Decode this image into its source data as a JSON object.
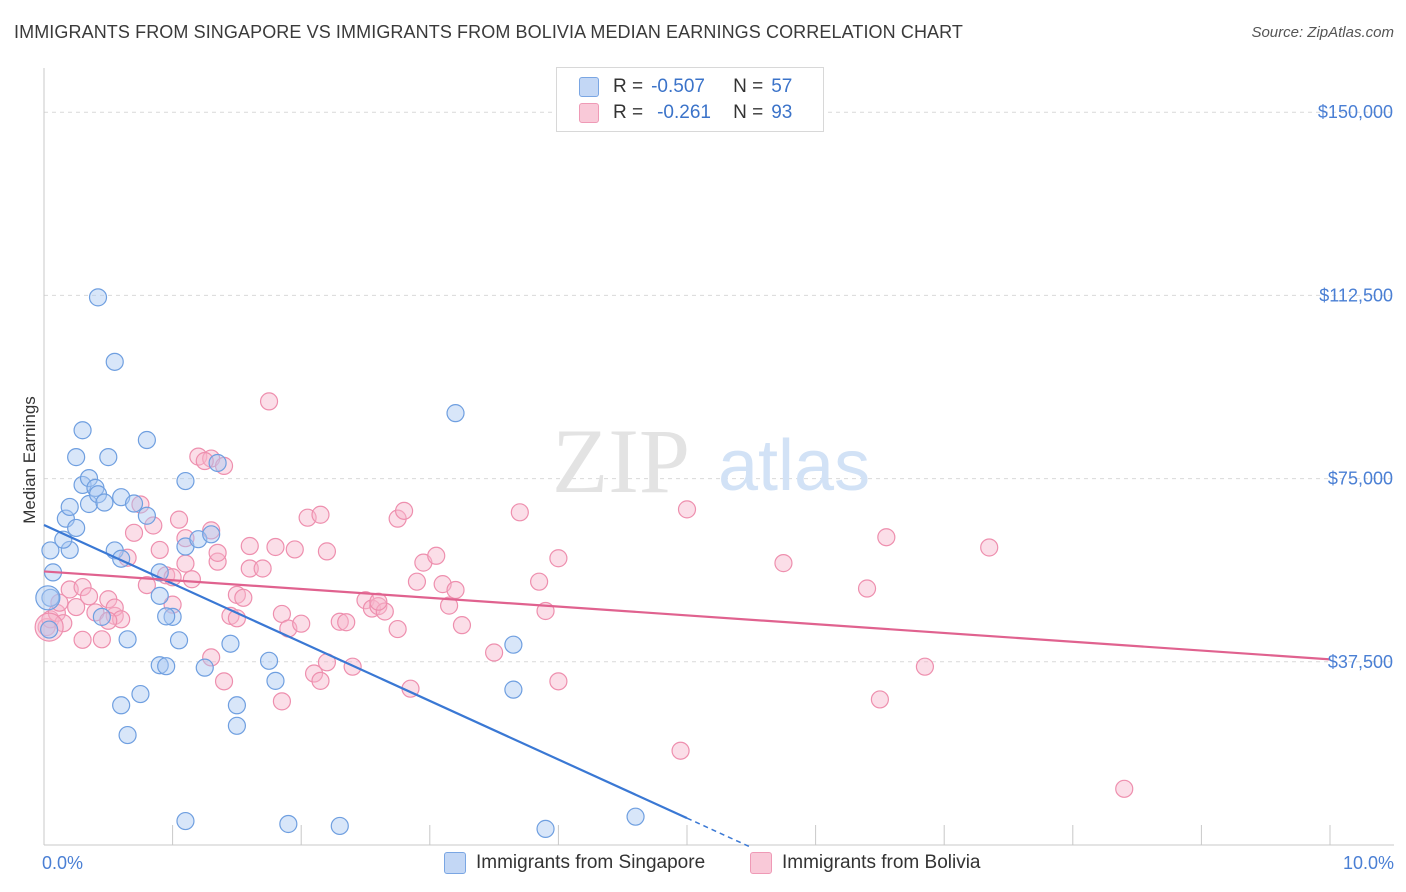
{
  "title": "IMMIGRANTS FROM SINGAPORE VS IMMIGRANTS FROM BOLIVIA MEDIAN EARNINGS CORRELATION CHART",
  "source": "Source: ZipAtlas.com",
  "watermark": {
    "zip": "ZIP",
    "atlas": "atlas"
  },
  "legend": {
    "rows": [
      {
        "r_label": "R =",
        "r_value": "-0.507",
        "n_label": "N =",
        "n_value": "57"
      },
      {
        "r_label": "R =",
        "r_value": "-0.261",
        "n_label": "N =",
        "n_value": "93"
      }
    ]
  },
  "colors": {
    "singapore_fill": "#a9c8f2",
    "singapore_stroke": "#6f9fe0",
    "singapore_line": "#3a78d4",
    "bolivia_fill": "#f6b6cb",
    "bolivia_stroke": "#ee8fae",
    "bolivia_line": "#e0628f",
    "grid": "#d9d9d9",
    "tick_text": "#4a7fd4"
  },
  "chart_data": {
    "type": "scatter",
    "title": "IMMIGRANTS FROM SINGAPORE VS IMMIGRANTS FROM BOLIVIA MEDIAN EARNINGS CORRELATION CHART",
    "xlabel": "",
    "ylabel": "Median Earnings",
    "xlim": [
      0,
      10
    ],
    "ylim": [
      0,
      157000
    ],
    "x_tick_labels": [
      "0.0%",
      "10.0%"
    ],
    "y_ticks": [
      37500,
      75000,
      112500,
      150000
    ],
    "y_tick_labels": [
      "$37,500",
      "$75,000",
      "$112,500",
      "$150,000"
    ],
    "grid": true,
    "series": [
      {
        "name": "Immigrants from Singapore",
        "r": -0.507,
        "n": 57,
        "trend": {
          "x0": 0.0,
          "y0": 65500,
          "x1": 5.0,
          "y1": 5500,
          "dash_x1": 5.5,
          "dash_y1": -500
        },
        "points": [
          [
            0.07,
            55800
          ],
          [
            0.05,
            60300
          ],
          [
            0.05,
            50600
          ],
          [
            0.04,
            44100
          ],
          [
            0.2,
            60400
          ],
          [
            0.15,
            62500
          ],
          [
            0.17,
            66800
          ],
          [
            0.2,
            69200
          ],
          [
            0.3,
            73700
          ],
          [
            0.25,
            79400
          ],
          [
            0.35,
            75100
          ],
          [
            0.35,
            69800
          ],
          [
            0.4,
            73100
          ],
          [
            0.42,
            71800
          ],
          [
            0.47,
            70100
          ],
          [
            0.3,
            84900
          ],
          [
            0.5,
            79400
          ],
          [
            0.6,
            71200
          ],
          [
            0.7,
            69900
          ],
          [
            0.8,
            67400
          ],
          [
            0.42,
            112100
          ],
          [
            0.55,
            98900
          ],
          [
            0.8,
            82900
          ],
          [
            1.1,
            74500
          ],
          [
            1.35,
            78200
          ],
          [
            0.25,
            64900
          ],
          [
            0.55,
            60300
          ],
          [
            0.6,
            58600
          ],
          [
            0.9,
            55800
          ],
          [
            0.9,
            51000
          ],
          [
            1.0,
            46700
          ],
          [
            1.1,
            61100
          ],
          [
            1.2,
            62600
          ],
          [
            1.3,
            63600
          ],
          [
            0.45,
            46700
          ],
          [
            0.65,
            42100
          ],
          [
            0.9,
            36800
          ],
          [
            0.95,
            36600
          ],
          [
            1.05,
            41900
          ],
          [
            1.25,
            36300
          ],
          [
            1.45,
            41200
          ],
          [
            0.75,
            30900
          ],
          [
            0.6,
            28600
          ],
          [
            0.65,
            22500
          ],
          [
            1.5,
            28600
          ],
          [
            1.5,
            24400
          ],
          [
            1.8,
            33600
          ],
          [
            3.2,
            88400
          ],
          [
            3.65,
            41000
          ],
          [
            3.65,
            31800
          ],
          [
            1.1,
            4900
          ],
          [
            1.9,
            4300
          ],
          [
            2.3,
            3900
          ],
          [
            3.9,
            3300
          ],
          [
            4.6,
            5800
          ],
          [
            0.95,
            46800
          ],
          [
            1.75,
            37700
          ]
        ]
      },
      {
        "name": "Immigrants from Bolivia",
        "r": -0.261,
        "n": 93,
        "trend": {
          "x0": 0.0,
          "y0": 56000,
          "x1": 10.0,
          "y1": 38000
        },
        "points": [
          [
            0.02,
            44600
          ],
          [
            0.05,
            46200
          ],
          [
            0.1,
            47500
          ],
          [
            0.12,
            49600
          ],
          [
            0.15,
            45400
          ],
          [
            0.2,
            52300
          ],
          [
            0.25,
            48700
          ],
          [
            0.3,
            52800
          ],
          [
            0.35,
            50900
          ],
          [
            0.4,
            47600
          ],
          [
            0.45,
            42100
          ],
          [
            0.5,
            50300
          ],
          [
            0.55,
            46900
          ],
          [
            0.55,
            48600
          ],
          [
            0.6,
            46200
          ],
          [
            0.65,
            58800
          ],
          [
            0.7,
            63900
          ],
          [
            0.75,
            69700
          ],
          [
            0.8,
            53200
          ],
          [
            0.85,
            65400
          ],
          [
            0.9,
            60400
          ],
          [
            0.95,
            55200
          ],
          [
            1.0,
            54800
          ],
          [
            1.05,
            66600
          ],
          [
            1.1,
            57600
          ],
          [
            1.15,
            54400
          ],
          [
            1.1,
            62800
          ],
          [
            1.2,
            79500
          ],
          [
            1.3,
            79100
          ],
          [
            1.25,
            78600
          ],
          [
            1.4,
            77600
          ],
          [
            1.3,
            64400
          ],
          [
            1.35,
            58000
          ],
          [
            1.35,
            59800
          ],
          [
            1.45,
            46900
          ],
          [
            1.5,
            51200
          ],
          [
            1.55,
            50600
          ],
          [
            1.6,
            61200
          ],
          [
            1.6,
            56600
          ],
          [
            1.7,
            56600
          ],
          [
            1.75,
            90800
          ],
          [
            1.8,
            61000
          ],
          [
            1.85,
            47300
          ],
          [
            1.9,
            44300
          ],
          [
            1.95,
            60500
          ],
          [
            2.0,
            45300
          ],
          [
            2.05,
            67000
          ],
          [
            2.15,
            67600
          ],
          [
            2.2,
            60100
          ],
          [
            2.2,
            37400
          ],
          [
            2.1,
            35100
          ],
          [
            2.15,
            33600
          ],
          [
            2.3,
            45700
          ],
          [
            2.35,
            45600
          ],
          [
            2.4,
            36500
          ],
          [
            2.5,
            50100
          ],
          [
            2.55,
            48400
          ],
          [
            2.6,
            48900
          ],
          [
            2.65,
            47800
          ],
          [
            2.75,
            44200
          ],
          [
            2.75,
            66800
          ],
          [
            2.8,
            68400
          ],
          [
            2.9,
            53900
          ],
          [
            2.95,
            57800
          ],
          [
            3.05,
            59200
          ],
          [
            3.1,
            53400
          ],
          [
            3.15,
            49000
          ],
          [
            3.2,
            52200
          ],
          [
            3.25,
            45000
          ],
          [
            3.5,
            39400
          ],
          [
            3.7,
            68100
          ],
          [
            3.85,
            53900
          ],
          [
            3.9,
            47900
          ],
          [
            4.0,
            58700
          ],
          [
            4.0,
            33500
          ],
          [
            5.0,
            68700
          ],
          [
            4.95,
            19300
          ],
          [
            5.75,
            57700
          ],
          [
            6.4,
            52500
          ],
          [
            6.5,
            29800
          ],
          [
            6.55,
            63000
          ],
          [
            6.85,
            36500
          ],
          [
            7.35,
            60900
          ],
          [
            8.4,
            11500
          ],
          [
            1.3,
            38400
          ],
          [
            1.4,
            33500
          ],
          [
            1.85,
            29400
          ],
          [
            2.85,
            32000
          ],
          [
            0.3,
            42000
          ],
          [
            0.5,
            45900
          ],
          [
            1.5,
            46400
          ],
          [
            2.6,
            49800
          ],
          [
            1.0,
            49200
          ]
        ]
      }
    ]
  },
  "bottom_legend": [
    "Immigrants from Singapore",
    "Immigrants from Bolivia"
  ]
}
